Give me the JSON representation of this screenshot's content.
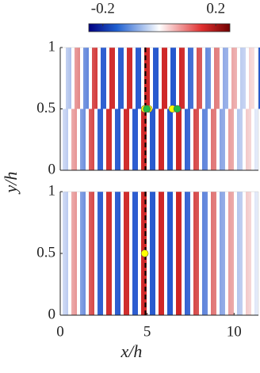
{
  "colorbar": {
    "range": [
      -0.25,
      0.25
    ],
    "ticks": [
      -0.2,
      0.2
    ]
  },
  "ylabel": "y/h",
  "chart_data": [
    {
      "type": "heatmap",
      "xlim": [
        0,
        11.4
      ],
      "ylim": [
        0,
        1
      ],
      "yticks": [
        0,
        0.5,
        1
      ],
      "reference_x": 4.9,
      "markers": [
        {
          "color": "#ffff00",
          "x": [
            4.86,
            5.09,
            6.45
          ],
          "y": [
            0.5,
            0.5,
            0.5
          ]
        },
        {
          "color": "#22bb44",
          "x": [
            4.98,
            6.73
          ],
          "y": [
            0.5,
            0.5
          ]
        }
      ]
    },
    {
      "type": "heatmap",
      "xlim": [
        0,
        11.4
      ],
      "ylim": [
        0,
        1
      ],
      "yticks": [
        0,
        0.5,
        1
      ],
      "xticks": [
        0,
        5,
        10
      ],
      "reference_x": 4.9,
      "xlabel": "x/h",
      "markers": [
        {
          "color": "#ffff00",
          "x": [
            4.86
          ],
          "y": [
            0.5
          ]
        }
      ]
    }
  ]
}
